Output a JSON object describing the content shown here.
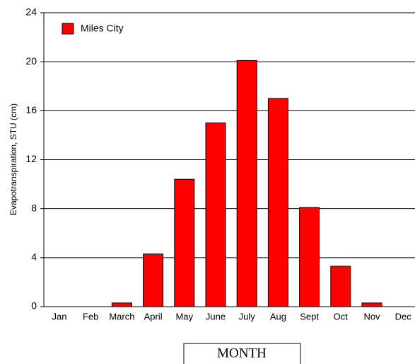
{
  "chart_data": {
    "type": "bar",
    "ylabel": "Evapotranspiration, STU  (cm)",
    "xlabel": "MONTH",
    "categories": [
      "Jan",
      "Feb",
      "March",
      "April",
      "May",
      "June",
      "July",
      "Aug",
      "Sept",
      "Oct",
      "Nov",
      "Dec"
    ],
    "series": [
      {
        "name": "Miles City",
        "color": "#ff0000",
        "values": [
          0,
          0,
          0.3,
          4.3,
          10.4,
          15.0,
          20.1,
          17.0,
          8.1,
          3.3,
          0.3,
          0
        ]
      }
    ],
    "ylim": [
      0,
      24
    ],
    "yticks": [
      0,
      4,
      8,
      12,
      16,
      20,
      24
    ],
    "grid": true,
    "legend": "upper left"
  }
}
